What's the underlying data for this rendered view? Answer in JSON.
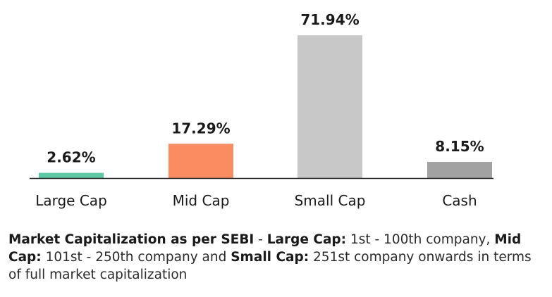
{
  "chart_data": {
    "type": "bar",
    "categories": [
      "Large Cap",
      "Mid Cap",
      "Small Cap",
      "Cash"
    ],
    "values": [
      2.62,
      17.29,
      71.94,
      8.15
    ],
    "value_labels": [
      "2.62%",
      "17.29%",
      "71.94%",
      "8.15%"
    ],
    "colors": [
      "#5ec7a3",
      "#f98d61",
      "#c8c8c8",
      "#a2a2a2"
    ],
    "title": "",
    "xlabel": "",
    "ylabel": "",
    "ylim": [
      0,
      72
    ],
    "grid": false,
    "legend": "none"
  },
  "footnote": {
    "t1_bold": "Market Capitalization as per SEBI",
    "t2": " - ",
    "t3_bold": "Large Cap:",
    "t4": " 1st - 100th company, ",
    "t5_bold": "Mid Cap:",
    "t6": " 101st - 250th company and ",
    "t7_bold": "Small Cap:",
    "t8": " 251st company onwards in terms of full market capitalization"
  }
}
